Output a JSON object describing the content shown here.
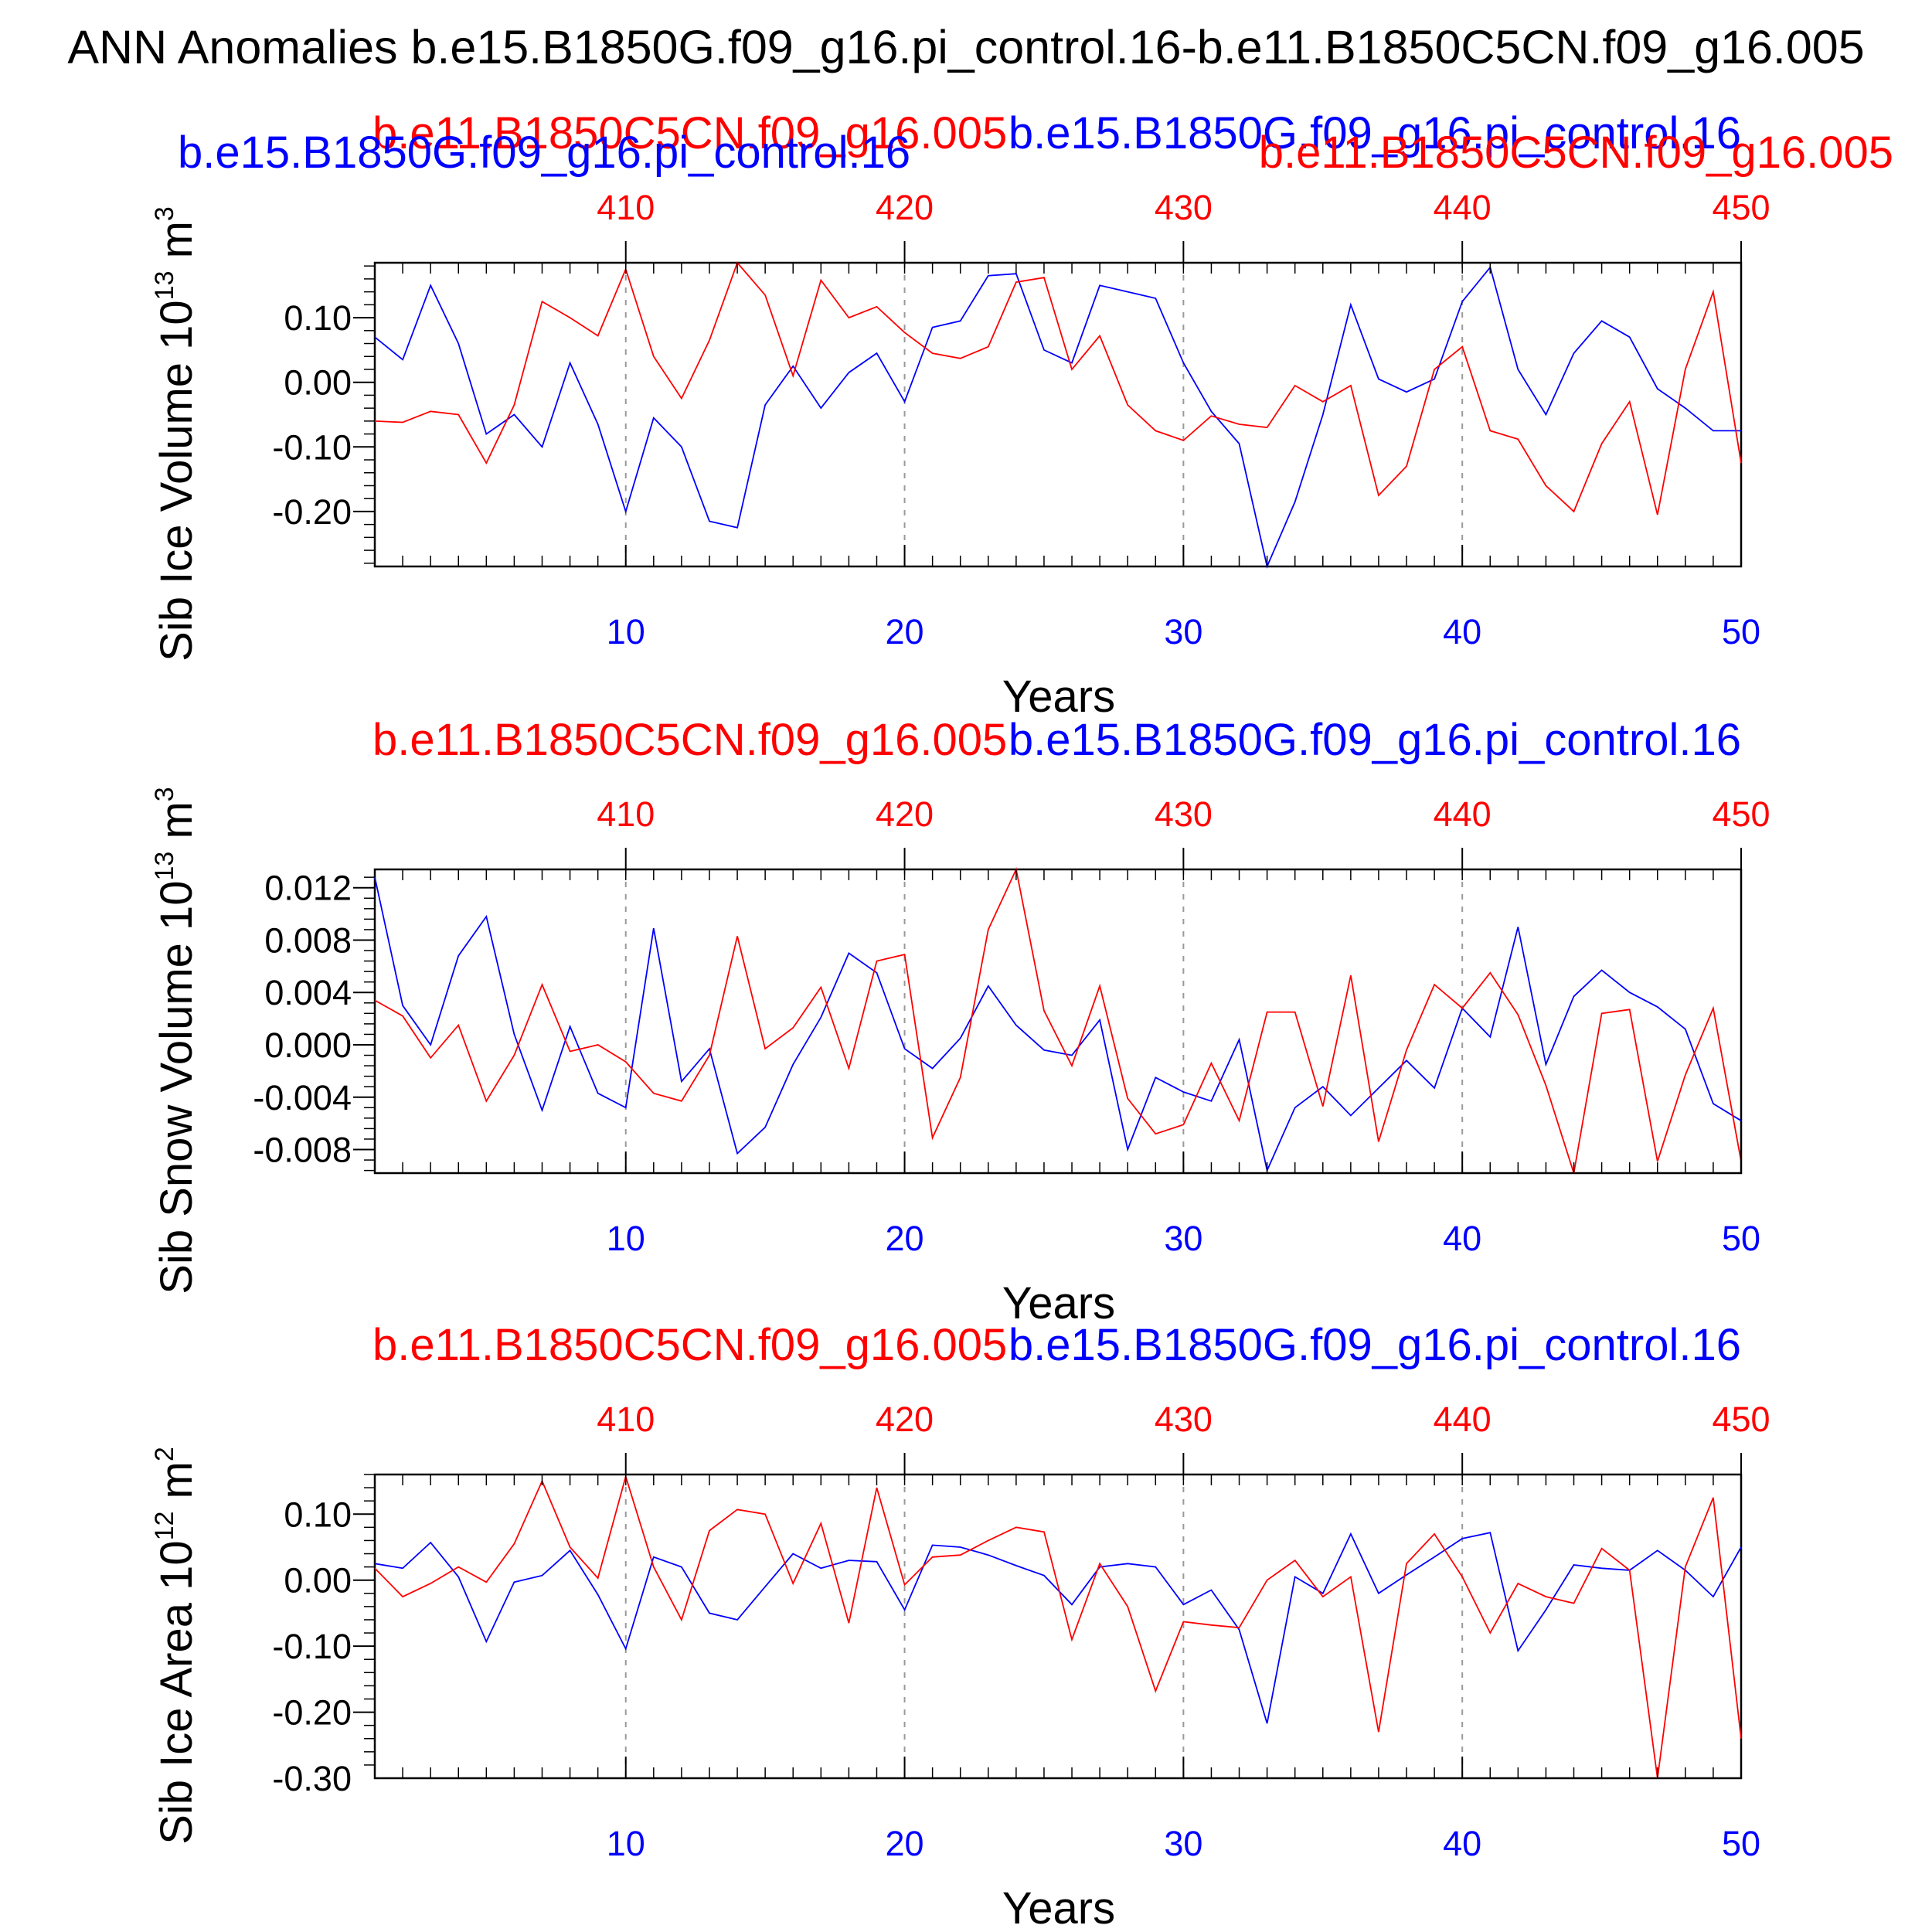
{
  "figure": {
    "main_title": "ANN Anomalies b.e15.B1850G.f09_g16.pi_control.16-b.e11.B1850C5CN.f09_g16.005",
    "top_left_label": "b.e15.B1850G.f09_g16.pi_control.16",
    "top_right_label": "b.e11.B1850C5CN.f09_g16.005"
  },
  "colors": {
    "series_a": "#0000ff",
    "series_b": "#ff0000",
    "axis": "#000000",
    "grid": "#999999"
  },
  "chart_data": [
    {
      "type": "line",
      "ylabel": "Sib Ice Volume 10",
      "ylabel_sup": "13",
      "ylabel_unit": " m",
      "ylabel_unit_sup": "3",
      "xlabel": "Years",
      "top_left_title": "b.e11.B1850C5CN.f09_g16.005",
      "top_right_title": "b.e15.B1850G.f09_g16.pi_control.16",
      "xlim": [
        1,
        50
      ],
      "ylim": [
        -0.285,
        0.185
      ],
      "yticks": [
        -0.2,
        -0.1,
        0.0,
        0.1
      ],
      "ytick_labels": [
        "-0.20",
        "-0.10",
        "0.00",
        "0.10"
      ],
      "xticks_bottom": [
        "10",
        "20",
        "30",
        "40",
        "50"
      ],
      "xticks_top": [
        "410",
        "420",
        "430",
        "440",
        "450"
      ],
      "series": [
        {
          "name": "b.e15.B1850G.f09_g16.pi_control.16",
          "color": "#0000ff",
          "values": [
            0.07,
            0.035,
            0.15,
            0.06,
            -0.08,
            -0.05,
            -0.1,
            0.03,
            -0.065,
            -0.2,
            -0.055,
            -0.1,
            -0.215,
            -0.225,
            -0.035,
            0.025,
            -0.04,
            0.015,
            0.045,
            -0.03,
            0.085,
            0.095,
            0.165,
            0.168,
            0.05,
            0.03,
            0.15,
            0.14,
            0.13,
            0.03,
            -0.045,
            -0.095,
            -0.285,
            -0.185,
            -0.05,
            0.12,
            0.005,
            -0.015,
            0.005,
            0.125,
            0.178,
            0.02,
            -0.05,
            0.045,
            0.095,
            0.07,
            -0.01,
            -0.04,
            -0.075,
            -0.075
          ]
        },
        {
          "name": "b.e11.B1850C5CN.f09_g16.005",
          "color": "#ff0000",
          "values": [
            -0.06,
            -0.062,
            -0.045,
            -0.05,
            -0.125,
            -0.035,
            0.125,
            0.1,
            0.072,
            0.175,
            0.04,
            -0.025,
            0.065,
            0.185,
            0.135,
            0.01,
            0.158,
            0.1,
            0.117,
            0.077,
            0.045,
            0.037,
            0.055,
            0.155,
            0.162,
            0.02,
            0.072,
            -0.035,
            -0.075,
            -0.09,
            -0.052,
            -0.065,
            -0.07,
            -0.005,
            -0.03,
            -0.005,
            -0.175,
            -0.13,
            0.02,
            0.055,
            -0.075,
            -0.088,
            -0.16,
            -0.2,
            -0.095,
            -0.03,
            -0.205,
            0.02,
            0.14,
            -0.125
          ]
        }
      ]
    },
    {
      "type": "line",
      "ylabel": "Sib Snow Volume 10",
      "ylabel_sup": "13",
      "ylabel_unit": " m",
      "ylabel_unit_sup": "3",
      "xlabel": "Years",
      "top_left_title": "b.e11.B1850C5CN.f09_g16.005",
      "top_right_title": "b.e15.B1850G.f09_g16.pi_control.16",
      "xlim": [
        1,
        50
      ],
      "ylim": [
        -0.0098,
        0.0134
      ],
      "yticks": [
        -0.008,
        -0.004,
        0.0,
        0.004,
        0.008,
        0.012
      ],
      "ytick_labels": [
        "-0.008",
        "-0.004",
        "0.000",
        "0.004",
        "0.008",
        "0.012"
      ],
      "xticks_bottom": [
        "10",
        "20",
        "30",
        "40",
        "50"
      ],
      "xticks_top": [
        "410",
        "420",
        "430",
        "440",
        "450"
      ],
      "series": [
        {
          "name": "b.e15.B1850G.f09_g16.pi_control.16",
          "color": "#0000ff",
          "values": [
            0.0128,
            0.003,
            0.0,
            0.0068,
            0.0098,
            0.0008,
            -0.005,
            0.0014,
            -0.0037,
            -0.0048,
            0.0089,
            -0.0028,
            -0.0003,
            -0.0083,
            -0.0063,
            -0.0015,
            0.0021,
            0.007,
            0.0055,
            -0.0003,
            -0.0018,
            0.0005,
            0.0045,
            0.0015,
            -0.0004,
            -0.0008,
            0.0019,
            -0.008,
            -0.0025,
            -0.0036,
            -0.0043,
            0.0004,
            -0.0096,
            -0.0048,
            -0.0032,
            -0.0054,
            -0.0033,
            -0.0012,
            -0.0033,
            0.0028,
            0.0006,
            0.009,
            -0.0015,
            0.0037,
            0.0057,
            0.004,
            0.0029,
            0.0012,
            -0.0045,
            -0.0058
          ]
        },
        {
          "name": "b.e11.B1850C5CN.f09_g16.005",
          "color": "#ff0000",
          "values": [
            0.0034,
            0.0022,
            -0.001,
            0.0015,
            -0.0043,
            -0.0008,
            0.0046,
            -0.0005,
            0.0,
            -0.0013,
            -0.0037,
            -0.0043,
            -0.0008,
            0.0083,
            -0.0003,
            0.0013,
            0.0044,
            -0.0018,
            0.0064,
            0.0069,
            -0.0071,
            -0.0025,
            0.0088,
            0.0134,
            0.0026,
            -0.0016,
            0.0045,
            -0.0041,
            -0.0068,
            -0.0061,
            -0.0014,
            -0.0058,
            0.0025,
            0.0025,
            -0.0047,
            0.0053,
            -0.0074,
            -0.0004,
            0.0046,
            0.0028,
            0.0055,
            0.0023,
            -0.0031,
            -0.0098,
            0.0024,
            0.0027,
            -0.0089,
            -0.0023,
            0.0028,
            -0.0089
          ]
        }
      ]
    },
    {
      "type": "line",
      "ylabel": "Sib Ice Area 10",
      "ylabel_sup": "12",
      "ylabel_unit": " m",
      "ylabel_unit_sup": "2",
      "xlabel": "Years",
      "top_left_title": "b.e11.B1850C5CN.f09_g16.005",
      "top_right_title": "b.e15.B1850G.f09_g16.pi_control.16",
      "xlim": [
        1,
        50
      ],
      "ylim": [
        -0.3,
        0.16
      ],
      "yticks": [
        -0.3,
        -0.2,
        -0.1,
        0.0,
        0.1
      ],
      "ytick_labels": [
        "-0.30",
        "-0.20",
        "-0.10",
        "0.00",
        "0.10"
      ],
      "xticks_bottom": [
        "10",
        "20",
        "30",
        "40",
        "50"
      ],
      "xticks_top": [
        "410",
        "420",
        "430",
        "440",
        "450"
      ],
      "series": [
        {
          "name": "b.e15.B1850G.f09_g16.pi_control.16",
          "color": "#0000ff",
          "values": [
            0.025,
            0.018,
            0.057,
            0.005,
            -0.093,
            -0.003,
            0.007,
            0.045,
            -0.022,
            -0.104,
            0.035,
            0.02,
            -0.05,
            -0.06,
            -0.01,
            0.04,
            0.018,
            0.03,
            0.028,
            -0.045,
            0.053,
            0.05,
            0.038,
            0.022,
            0.007,
            -0.037,
            0.02,
            0.025,
            0.02,
            -0.037,
            -0.015,
            -0.075,
            -0.217,
            0.005,
            -0.02,
            0.07,
            -0.02,
            0.008,
            0.035,
            0.063,
            0.072,
            -0.107,
            -0.045,
            0.023,
            0.018,
            0.015,
            0.045,
            0.015,
            -0.025,
            0.05
          ]
        },
        {
          "name": "b.e11.B1850C5CN.f09_g16.005",
          "color": "#ff0000",
          "values": [
            0.018,
            -0.025,
            -0.005,
            0.02,
            -0.003,
            0.055,
            0.15,
            0.05,
            0.003,
            0.157,
            0.02,
            -0.06,
            0.075,
            0.107,
            0.1,
            -0.005,
            0.086,
            -0.065,
            0.14,
            -0.007,
            0.035,
            0.038,
            0.06,
            0.08,
            0.073,
            -0.09,
            0.025,
            -0.04,
            -0.168,
            -0.063,
            -0.068,
            -0.072,
            0.0,
            0.03,
            -0.025,
            0.005,
            -0.23,
            0.025,
            0.07,
            0.005,
            -0.08,
            -0.005,
            -0.025,
            -0.035,
            0.048,
            0.015,
            -0.3,
            0.02,
            0.125,
            -0.24
          ]
        }
      ]
    }
  ]
}
